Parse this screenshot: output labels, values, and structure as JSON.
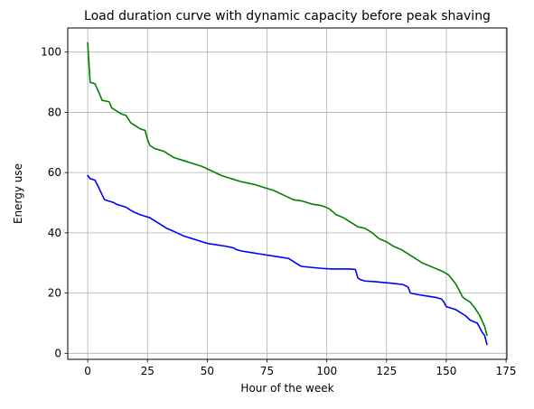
{
  "chart_data": {
    "type": "line",
    "title": "Load duration curve with dynamic capacity before peak shaving",
    "xlabel": "Hour of the week",
    "ylabel": "Energy use",
    "xlim": [
      -8.35,
      175.35
    ],
    "ylim": [
      -2,
      108
    ],
    "xticks": [
      0,
      25,
      50,
      75,
      100,
      125,
      150,
      175
    ],
    "yticks": [
      0,
      20,
      40,
      60,
      80,
      100
    ],
    "grid": true,
    "series": [
      {
        "color": "#008000",
        "x": [
          0,
          1,
          3,
          5,
          6,
          9,
          10,
          12,
          14,
          16,
          18,
          22,
          24,
          25,
          26,
          28,
          32,
          36,
          40,
          44,
          48,
          52,
          56,
          60,
          64,
          67,
          70,
          74,
          78,
          82,
          86,
          90,
          94,
          98,
          101,
          104,
          107,
          110,
          113,
          116,
          119,
          122,
          125,
          128,
          131,
          134,
          137,
          140,
          143,
          146,
          149,
          151,
          152,
          154,
          156,
          157,
          158,
          160,
          162,
          164,
          166,
          167
        ],
        "y": [
          103,
          90,
          89.5,
          86,
          84,
          83.5,
          81.5,
          80.5,
          79.5,
          79,
          76.5,
          74.5,
          74,
          71,
          69,
          68,
          67,
          65,
          64,
          63,
          62,
          60.5,
          59,
          58,
          57,
          56.5,
          56,
          55,
          54,
          52.5,
          51,
          50.5,
          49.5,
          49,
          48,
          46,
          45,
          43.5,
          42,
          41.5,
          40,
          38,
          37,
          35.5,
          34.5,
          33,
          31.5,
          30,
          29,
          28,
          27,
          26,
          25,
          23,
          20,
          18.5,
          18,
          17,
          15,
          12.5,
          9,
          6
        ]
      },
      {
        "color": "#0000ff",
        "x": [
          0,
          1,
          3,
          4,
          7,
          11,
          12,
          14,
          16,
          19,
          22,
          24,
          26,
          28,
          30,
          32,
          33,
          36,
          40,
          42,
          44,
          48,
          50,
          54,
          58,
          61,
          62,
          64,
          68,
          72,
          76,
          80,
          84,
          86,
          88,
          89,
          90,
          94,
          98,
          102,
          106,
          110,
          112,
          113,
          114,
          116,
          120,
          124,
          128,
          132,
          134,
          135,
          138,
          142,
          146,
          148,
          149,
          150,
          152,
          154,
          156,
          157,
          158,
          160,
          163,
          164,
          165,
          166,
          167
        ],
        "y": [
          59,
          58,
          57.5,
          56,
          51,
          50,
          49.5,
          49,
          48.5,
          47,
          46,
          45.5,
          45,
          44,
          43,
          42,
          41.5,
          40.5,
          39,
          38.5,
          38,
          37,
          36.5,
          36,
          35.5,
          35,
          34.5,
          34,
          33.5,
          33,
          32.5,
          32,
          31.5,
          30.5,
          29.5,
          29,
          28.8,
          28.5,
          28.2,
          28,
          28,
          28,
          27.8,
          25,
          24.5,
          24,
          23.8,
          23.5,
          23.2,
          22.8,
          22,
          20,
          19.5,
          19,
          18.5,
          18,
          17,
          15.5,
          15,
          14.5,
          13.5,
          13,
          12.5,
          11,
          10,
          8.5,
          7,
          6,
          3
        ]
      }
    ]
  }
}
